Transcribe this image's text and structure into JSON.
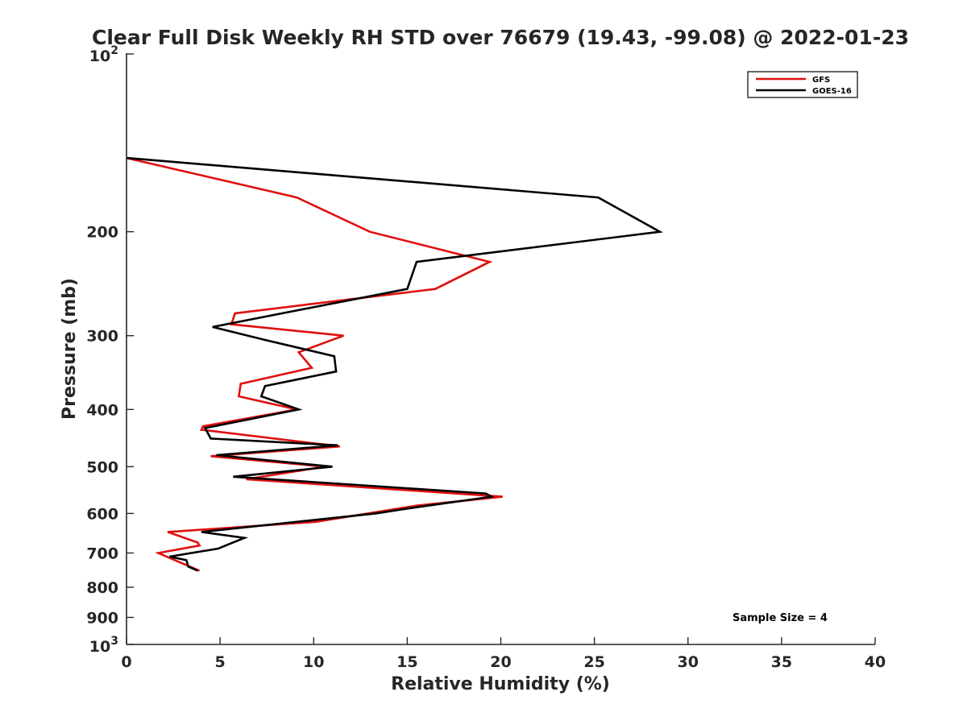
{
  "chart_data": {
    "type": "line",
    "title": "Clear Full Disk Weekly RH STD over 76679 (19.43, -99.08) @ 2022-01-23",
    "xlabel": "Relative Humidity (%)",
    "ylabel": "Pressure (mb)",
    "xlim": [
      0,
      40
    ],
    "ylim": [
      100,
      1000
    ],
    "y_scale": "log",
    "y_reversed": true,
    "x_ticks": [
      "0",
      "5",
      "10",
      "15",
      "20",
      "25",
      "30",
      "35",
      "40"
    ],
    "x_tick_values": [
      0,
      5,
      10,
      15,
      20,
      25,
      30,
      35,
      40
    ],
    "y_ticks": [
      {
        "value": 100,
        "base": "10",
        "exp": "2"
      },
      {
        "value": 200,
        "label": "200"
      },
      {
        "value": 300,
        "label": "300"
      },
      {
        "value": 400,
        "label": "400"
      },
      {
        "value": 500,
        "label": "500"
      },
      {
        "value": 600,
        "label": "600"
      },
      {
        "value": 700,
        "label": "700"
      },
      {
        "value": 800,
        "label": "800"
      },
      {
        "value": 900,
        "label": "900"
      },
      {
        "value": 1000,
        "base": "10",
        "exp": "3"
      }
    ],
    "legend_position": "top-right",
    "grid": false,
    "annotation": "Sample Size = 4",
    "series": [
      {
        "name": "GFS",
        "color": "#e01010",
        "points": [
          [
            0.0,
            150
          ],
          [
            9.1,
            175
          ],
          [
            13.0,
            200
          ],
          [
            19.4,
            225
          ],
          [
            16.5,
            250
          ],
          [
            5.8,
            275
          ],
          [
            5.6,
            287
          ],
          [
            11.6,
            300
          ],
          [
            9.2,
            320
          ],
          [
            9.9,
            340
          ],
          [
            6.1,
            362
          ],
          [
            6.0,
            380
          ],
          [
            9.1,
            400
          ],
          [
            4.1,
            427
          ],
          [
            4.0,
            433
          ],
          [
            11.4,
            462
          ],
          [
            4.5,
            480
          ],
          [
            10.6,
            500
          ],
          [
            6.4,
            525
          ],
          [
            20.1,
            562
          ],
          [
            15.5,
            582
          ],
          [
            10.1,
            620
          ],
          [
            2.2,
            645
          ],
          [
            3.8,
            672
          ],
          [
            3.9,
            680
          ],
          [
            1.7,
            700
          ],
          [
            2.8,
            725
          ],
          [
            3.9,
            750
          ]
        ]
      },
      {
        "name": "GOES-16",
        "color": "#000000",
        "points": [
          [
            0.0,
            150
          ],
          [
            25.2,
            175
          ],
          [
            28.5,
            200
          ],
          [
            15.5,
            225
          ],
          [
            15.0,
            250
          ],
          [
            8.3,
            275
          ],
          [
            4.6,
            290
          ],
          [
            7.4,
            305
          ],
          [
            11.1,
            325
          ],
          [
            11.2,
            345
          ],
          [
            7.4,
            365
          ],
          [
            7.2,
            380
          ],
          [
            9.2,
            400
          ],
          [
            4.2,
            430
          ],
          [
            4.5,
            448
          ],
          [
            11.3,
            460
          ],
          [
            4.8,
            478
          ],
          [
            11.0,
            500
          ],
          [
            5.7,
            520
          ],
          [
            19.2,
            555
          ],
          [
            19.5,
            562
          ],
          [
            15.6,
            585
          ],
          [
            13.3,
            600
          ],
          [
            4.0,
            645
          ],
          [
            6.3,
            660
          ],
          [
            4.9,
            688
          ],
          [
            2.3,
            710
          ],
          [
            3.2,
            720
          ],
          [
            3.3,
            738
          ],
          [
            3.8,
            750
          ]
        ]
      }
    ]
  }
}
